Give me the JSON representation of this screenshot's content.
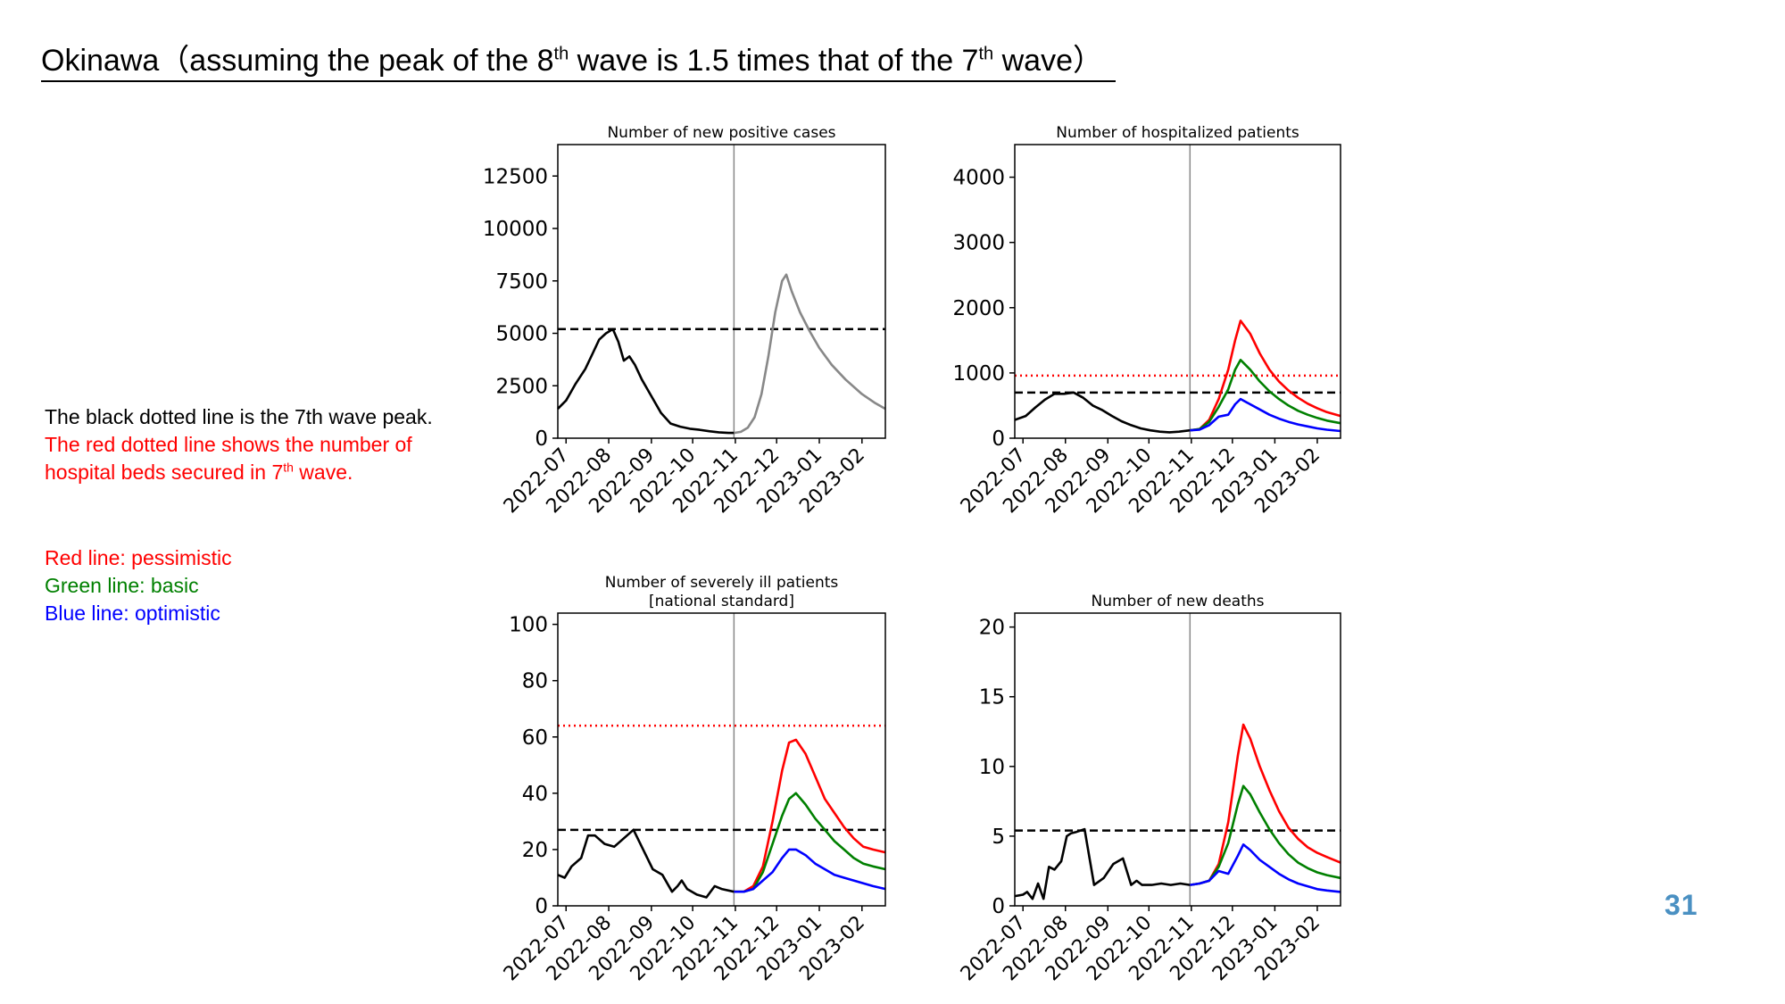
{
  "slide": {
    "title_part1": "Okinawa（assuming the peak of the 8",
    "title_sup1": "th",
    "title_part2": " wave is 1.5 times that of the 7",
    "title_sup2": "th",
    "title_part3": " wave）",
    "page_number": "31"
  },
  "notes": {
    "line1": "The black dotted line is the 7th wave peak.",
    "line2": "The red dotted line shows the number of",
    "line3_part1": "hospital beds secured in 7",
    "line3_sup": "th",
    "line3_part2": " wave.",
    "red_label": "Red line: pessimistic",
    "green_label": "Green line: basic",
    "blue_label": "Blue line: optimistic"
  },
  "colors": {
    "red": "#ff0000",
    "green": "#008000",
    "blue": "#0000ff",
    "black": "#000000",
    "projection_gray": "#888888",
    "page_number": "#4a90c2"
  },
  "chart_data": [
    {
      "type": "line",
      "title": "Number of new positive cases",
      "xlim": [
        "2022-06-25",
        "2023-02-18"
      ],
      "x_ticks": [
        "2022-07",
        "2022-08",
        "2022-09",
        "2022-10",
        "2022-11",
        "2022-12",
        "2023-01",
        "2023-02"
      ],
      "ylim": [
        0,
        14000
      ],
      "y_ticks": [
        0,
        2500,
        5000,
        7500,
        10000,
        12500
      ],
      "divider_x": "2022-10-31",
      "reference_lines": [
        {
          "label": "7th wave peak",
          "y": 5200,
          "color": "#000000",
          "style": "dashed"
        }
      ],
      "series": [
        {
          "role": "observed",
          "color": "#000000",
          "x": [
            "2022-06-25",
            "2022-07-01",
            "2022-07-08",
            "2022-07-15",
            "2022-07-20",
            "2022-07-25",
            "2022-07-30",
            "2022-08-04",
            "2022-08-08",
            "2022-08-12",
            "2022-08-16",
            "2022-08-20",
            "2022-08-25",
            "2022-09-01",
            "2022-09-08",
            "2022-09-15",
            "2022-09-22",
            "2022-09-29",
            "2022-10-06",
            "2022-10-13",
            "2022-10-20",
            "2022-10-27",
            "2022-10-31"
          ],
          "y": [
            1400,
            1800,
            2600,
            3300,
            4000,
            4700,
            5000,
            5200,
            4600,
            3700,
            3900,
            3500,
            2800,
            2000,
            1200,
            700,
            550,
            450,
            400,
            330,
            280,
            250,
            250
          ]
        },
        {
          "role": "projection",
          "color": "#888888",
          "x": [
            "2022-10-31",
            "2022-11-05",
            "2022-11-10",
            "2022-11-15",
            "2022-11-20",
            "2022-11-25",
            "2022-11-30",
            "2022-12-05",
            "2022-12-08",
            "2022-12-12",
            "2022-12-18",
            "2022-12-25",
            "2023-01-01",
            "2023-01-10",
            "2023-01-20",
            "2023-02-01",
            "2023-02-10",
            "2023-02-18"
          ],
          "y": [
            250,
            300,
            500,
            1000,
            2100,
            3900,
            6000,
            7500,
            7800,
            7000,
            6000,
            5100,
            4300,
            3500,
            2800,
            2100,
            1700,
            1400
          ]
        }
      ]
    },
    {
      "type": "line",
      "title": "Number of hospitalized patients",
      "xlim": [
        "2022-06-25",
        "2023-02-18"
      ],
      "x_ticks": [
        "2022-07",
        "2022-08",
        "2022-09",
        "2022-10",
        "2022-11",
        "2022-12",
        "2023-01",
        "2023-02"
      ],
      "ylim": [
        0,
        4500
      ],
      "y_ticks": [
        0,
        1000,
        2000,
        3000,
        4000
      ],
      "divider_x": "2022-10-31",
      "reference_lines": [
        {
          "label": "7th wave peak",
          "y": 700,
          "color": "#000000",
          "style": "dashed"
        },
        {
          "label": "beds secured in 7th wave",
          "y": 960,
          "color": "#ff0000",
          "style": "dotted"
        }
      ],
      "series": [
        {
          "role": "observed",
          "color": "#000000",
          "x": [
            "2022-06-25",
            "2022-07-03",
            "2022-07-10",
            "2022-07-17",
            "2022-07-24",
            "2022-07-31",
            "2022-08-07",
            "2022-08-14",
            "2022-08-21",
            "2022-08-28",
            "2022-09-04",
            "2022-09-11",
            "2022-09-18",
            "2022-09-25",
            "2022-10-02",
            "2022-10-09",
            "2022-10-16",
            "2022-10-23",
            "2022-10-31"
          ],
          "y": [
            280,
            340,
            470,
            590,
            680,
            680,
            700,
            620,
            500,
            430,
            340,
            260,
            200,
            150,
            120,
            100,
            90,
            100,
            120
          ]
        },
        {
          "name": "Red line: pessimistic",
          "color": "#ff0000",
          "x": [
            "2022-10-31",
            "2022-11-07",
            "2022-11-14",
            "2022-11-21",
            "2022-11-28",
            "2022-12-03",
            "2022-12-07",
            "2022-12-14",
            "2022-12-21",
            "2022-12-28",
            "2023-01-04",
            "2023-01-11",
            "2023-01-18",
            "2023-01-25",
            "2023-02-01",
            "2023-02-08",
            "2023-02-18"
          ],
          "y": [
            120,
            140,
            280,
            600,
            1050,
            1500,
            1800,
            1600,
            1300,
            1050,
            870,
            730,
            620,
            530,
            460,
            400,
            340
          ]
        },
        {
          "name": "Green line: basic",
          "color": "#008000",
          "x": [
            "2022-10-31",
            "2022-11-07",
            "2022-11-14",
            "2022-11-21",
            "2022-11-28",
            "2022-12-03",
            "2022-12-07",
            "2022-12-14",
            "2022-12-21",
            "2022-12-28",
            "2023-01-04",
            "2023-01-11",
            "2023-01-18",
            "2023-01-25",
            "2023-02-01",
            "2023-02-08",
            "2023-02-18"
          ],
          "y": [
            120,
            140,
            250,
            480,
            750,
            1050,
            1200,
            1050,
            870,
            720,
            600,
            500,
            420,
            360,
            310,
            270,
            230
          ]
        },
        {
          "name": "Blue line: optimistic",
          "color": "#0000ff",
          "x": [
            "2022-10-31",
            "2022-11-07",
            "2022-11-14",
            "2022-11-21",
            "2022-11-28",
            "2022-12-03",
            "2022-12-07",
            "2022-12-14",
            "2022-12-21",
            "2022-12-28",
            "2023-01-04",
            "2023-01-11",
            "2023-01-18",
            "2023-01-25",
            "2023-02-01",
            "2023-02-08",
            "2023-02-18"
          ],
          "y": [
            120,
            130,
            200,
            330,
            360,
            520,
            600,
            520,
            440,
            360,
            300,
            250,
            210,
            180,
            150,
            130,
            110
          ]
        }
      ]
    },
    {
      "type": "line",
      "title": "Number of severely ill patients",
      "subtitle": "[national standard]",
      "xlim": [
        "2022-06-25",
        "2023-02-18"
      ],
      "x_ticks": [
        "2022-07",
        "2022-08",
        "2022-09",
        "2022-10",
        "2022-11",
        "2022-12",
        "2023-01",
        "2023-02"
      ],
      "ylim": [
        0,
        104
      ],
      "y_ticks": [
        0,
        20,
        40,
        60,
        80,
        100
      ],
      "divider_x": "2022-10-31",
      "reference_lines": [
        {
          "label": "7th wave peak",
          "y": 27,
          "color": "#000000",
          "style": "dashed"
        },
        {
          "label": "beds secured in 7th wave",
          "y": 64,
          "color": "#ff0000",
          "style": "dotted"
        }
      ],
      "series": [
        {
          "role": "observed",
          "color": "#000000",
          "x": [
            "2022-06-25",
            "2022-06-30",
            "2022-07-05",
            "2022-07-12",
            "2022-07-17",
            "2022-07-22",
            "2022-07-29",
            "2022-08-05",
            "2022-08-12",
            "2022-08-19",
            "2022-08-26",
            "2022-09-02",
            "2022-09-09",
            "2022-09-16",
            "2022-09-20",
            "2022-09-23",
            "2022-09-27",
            "2022-10-04",
            "2022-10-11",
            "2022-10-17",
            "2022-10-22",
            "2022-10-31"
          ],
          "y": [
            11,
            10,
            14,
            17,
            25,
            25,
            22,
            21,
            24,
            27,
            20,
            13,
            11,
            5,
            7,
            9,
            6,
            4,
            3,
            7,
            6,
            5
          ]
        },
        {
          "name": "Red line: pessimistic",
          "color": "#ff0000",
          "x": [
            "2022-10-31",
            "2022-11-07",
            "2022-11-14",
            "2022-11-21",
            "2022-11-28",
            "2022-12-05",
            "2022-12-10",
            "2022-12-15",
            "2022-12-22",
            "2022-12-29",
            "2023-01-05",
            "2023-01-12",
            "2023-01-19",
            "2023-01-26",
            "2023-02-02",
            "2023-02-09",
            "2023-02-18"
          ],
          "y": [
            5,
            5,
            7,
            14,
            30,
            48,
            58,
            59,
            54,
            46,
            38,
            33,
            28,
            24,
            21,
            20,
            19
          ]
        },
        {
          "name": "Green line: basic",
          "color": "#008000",
          "x": [
            "2022-10-31",
            "2022-11-07",
            "2022-11-14",
            "2022-11-21",
            "2022-11-28",
            "2022-12-05",
            "2022-12-10",
            "2022-12-15",
            "2022-12-22",
            "2022-12-29",
            "2023-01-05",
            "2023-01-12",
            "2023-01-19",
            "2023-01-26",
            "2023-02-02",
            "2023-02-09",
            "2023-02-18"
          ],
          "y": [
            5,
            5,
            6,
            12,
            22,
            32,
            38,
            40,
            36,
            31,
            27,
            23,
            20,
            17,
            15,
            14,
            13
          ]
        },
        {
          "name": "Blue line: optimistic",
          "color": "#0000ff",
          "x": [
            "2022-10-31",
            "2022-11-07",
            "2022-11-14",
            "2022-11-21",
            "2022-11-28",
            "2022-12-05",
            "2022-12-10",
            "2022-12-15",
            "2022-12-22",
            "2022-12-29",
            "2023-01-05",
            "2023-01-12",
            "2023-01-19",
            "2023-01-26",
            "2023-02-02",
            "2023-02-09",
            "2023-02-18"
          ],
          "y": [
            5,
            5,
            6,
            9,
            12,
            17,
            20,
            20,
            18,
            15,
            13,
            11,
            10,
            9,
            8,
            7,
            6
          ]
        }
      ]
    },
    {
      "type": "line",
      "title": "Number of new deaths",
      "xlim": [
        "2022-06-25",
        "2023-02-18"
      ],
      "x_ticks": [
        "2022-07",
        "2022-08",
        "2022-09",
        "2022-10",
        "2022-11",
        "2022-12",
        "2023-01",
        "2023-02"
      ],
      "ylim": [
        0,
        21
      ],
      "y_ticks": [
        0,
        5,
        10,
        15,
        20
      ],
      "divider_x": "2022-10-31",
      "reference_lines": [
        {
          "label": "7th wave peak",
          "y": 5.4,
          "color": "#000000",
          "style": "dashed"
        }
      ],
      "series": [
        {
          "role": "observed",
          "color": "#000000",
          "x": [
            "2022-06-25",
            "2022-07-01",
            "2022-07-04",
            "2022-07-08",
            "2022-07-12",
            "2022-07-16",
            "2022-07-20",
            "2022-07-24",
            "2022-07-29",
            "2022-08-02",
            "2022-08-05",
            "2022-08-09",
            "2022-08-15",
            "2022-08-22",
            "2022-08-29",
            "2022-09-05",
            "2022-09-12",
            "2022-09-18",
            "2022-09-22",
            "2022-09-26",
            "2022-10-03",
            "2022-10-10",
            "2022-10-17",
            "2022-10-24",
            "2022-10-31"
          ],
          "y": [
            0.7,
            0.8,
            1.0,
            0.5,
            1.6,
            0.5,
            2.8,
            2.6,
            3.2,
            5.0,
            5.2,
            5.3,
            5.5,
            1.5,
            2.0,
            3.0,
            3.4,
            1.5,
            1.8,
            1.5,
            1.5,
            1.6,
            1.5,
            1.6,
            1.5
          ]
        },
        {
          "name": "Red line: pessimistic",
          "color": "#ff0000",
          "x": [
            "2022-10-31",
            "2022-11-07",
            "2022-11-14",
            "2022-11-21",
            "2022-11-28",
            "2022-12-05",
            "2022-12-09",
            "2022-12-14",
            "2022-12-21",
            "2022-12-28",
            "2023-01-04",
            "2023-01-11",
            "2023-01-18",
            "2023-01-25",
            "2023-02-01",
            "2023-02-08",
            "2023-02-18"
          ],
          "y": [
            1.5,
            1.6,
            1.8,
            3.0,
            6.0,
            10.8,
            13.0,
            12.0,
            10.0,
            8.3,
            6.8,
            5.6,
            4.8,
            4.2,
            3.8,
            3.5,
            3.1
          ]
        },
        {
          "name": "Green line: basic",
          "color": "#008000",
          "x": [
            "2022-10-31",
            "2022-11-07",
            "2022-11-14",
            "2022-11-21",
            "2022-11-28",
            "2022-12-05",
            "2022-12-09",
            "2022-12-14",
            "2022-12-21",
            "2022-12-28",
            "2023-01-04",
            "2023-01-11",
            "2023-01-18",
            "2023-01-25",
            "2023-02-01",
            "2023-02-08",
            "2023-02-18"
          ],
          "y": [
            1.5,
            1.6,
            1.8,
            2.8,
            4.5,
            7.3,
            8.6,
            8.0,
            6.7,
            5.5,
            4.5,
            3.7,
            3.1,
            2.7,
            2.4,
            2.2,
            2.0
          ]
        },
        {
          "name": "Blue line: optimistic",
          "color": "#0000ff",
          "x": [
            "2022-10-31",
            "2022-11-07",
            "2022-11-14",
            "2022-11-21",
            "2022-11-28",
            "2022-12-05",
            "2022-12-09",
            "2022-12-14",
            "2022-12-21",
            "2022-12-28",
            "2023-01-04",
            "2023-01-11",
            "2023-01-18",
            "2023-01-25",
            "2023-02-01",
            "2023-02-08",
            "2023-02-18"
          ],
          "y": [
            1.5,
            1.6,
            1.8,
            2.5,
            2.3,
            3.6,
            4.4,
            4.0,
            3.3,
            2.8,
            2.3,
            1.9,
            1.6,
            1.4,
            1.2,
            1.1,
            1.0
          ]
        }
      ]
    }
  ]
}
